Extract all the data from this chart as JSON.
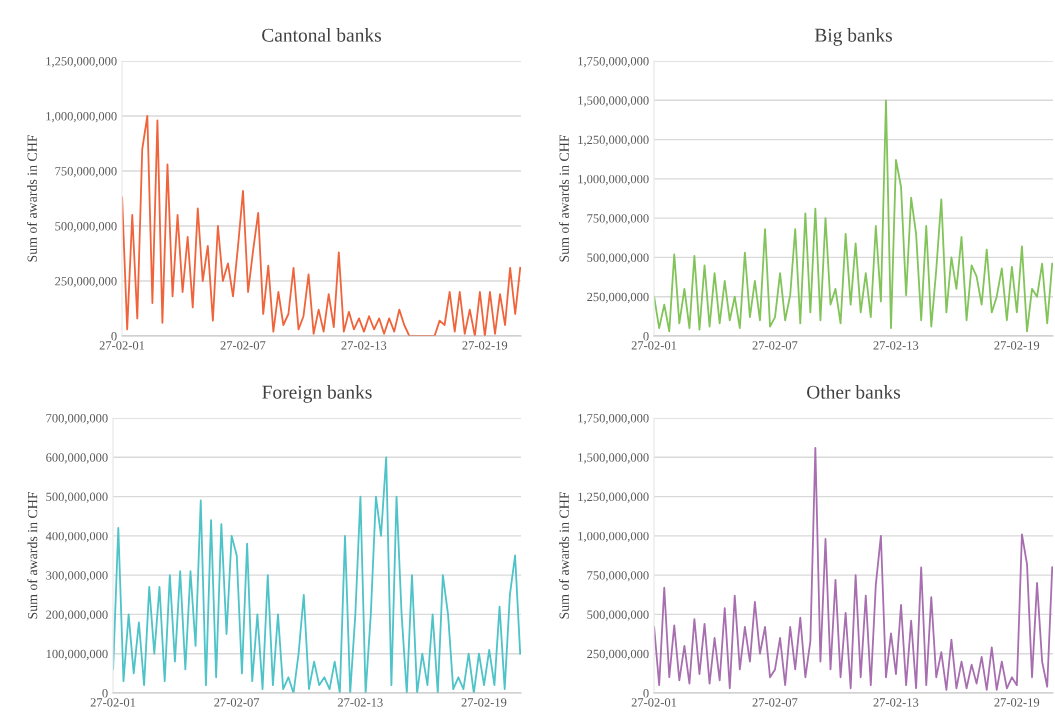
{
  "chart_data": [
    {
      "type": "line",
      "title": "Cantonal banks",
      "ylabel": "Sum of awards in CHF",
      "grid": "y",
      "marker": "none",
      "line_style": "solid",
      "xlim": [
        "2001-02-27",
        "2020-12-15"
      ],
      "xticks": [
        {
          "value": "2001-02-27",
          "label": "27-02-01"
        },
        {
          "value": "2007-02-27",
          "label": "27-02-07"
        },
        {
          "value": "2013-02-27",
          "label": "27-02-13"
        },
        {
          "value": "2019-02-27",
          "label": "27-02-19"
        }
      ],
      "ylim": [
        0,
        1250000000
      ],
      "yticks": [
        0,
        {
          "value": 250000000,
          "label": "250,000,000"
        },
        {
          "value": 500000000,
          "label": "500,000,000"
        },
        {
          "value": 750000000,
          "label": "750,000,000"
        },
        {
          "value": 1000000000,
          "label": "1,000,000,000"
        },
        {
          "value": 1250000000,
          "label": "1,250,000,000"
        }
      ],
      "x": [
        "2001-03",
        "2001-06",
        "2001-09",
        "2001-12",
        "2002-03",
        "2002-06",
        "2002-09",
        "2002-12",
        "2003-03",
        "2003-06",
        "2003-09",
        "2003-12",
        "2004-03",
        "2004-06",
        "2004-09",
        "2004-12",
        "2005-03",
        "2005-06",
        "2005-09",
        "2005-12",
        "2006-03",
        "2006-06",
        "2006-09",
        "2006-12",
        "2007-03",
        "2007-06",
        "2007-09",
        "2007-12",
        "2008-03",
        "2008-06",
        "2008-09",
        "2008-12",
        "2009-03",
        "2009-06",
        "2009-09",
        "2009-12",
        "2010-03",
        "2010-06",
        "2010-09",
        "2010-12",
        "2011-03",
        "2011-06",
        "2011-09",
        "2011-12",
        "2012-03",
        "2012-06",
        "2012-09",
        "2012-12",
        "2013-03",
        "2013-06",
        "2013-09",
        "2013-12",
        "2014-03",
        "2014-06",
        "2014-09",
        "2014-12",
        "2015-03",
        "2015-06",
        "2015-09",
        "2015-12",
        "2016-03",
        "2016-06",
        "2016-09",
        "2016-12",
        "2017-03",
        "2017-06",
        "2017-09",
        "2017-12",
        "2018-03",
        "2018-06",
        "2018-09",
        "2018-12",
        "2019-03",
        "2019-06",
        "2019-09",
        "2019-12",
        "2020-03",
        "2020-06",
        "2020-09",
        "2020-12"
      ],
      "series": [
        {
          "color": "#f0643c",
          "values": [
            630000000,
            30000000,
            550000000,
            80000000,
            850000000,
            1000000000,
            150000000,
            980000000,
            60000000,
            780000000,
            180000000,
            550000000,
            200000000,
            450000000,
            130000000,
            580000000,
            250000000,
            410000000,
            70000000,
            500000000,
            250000000,
            330000000,
            180000000,
            410000000,
            660000000,
            200000000,
            390000000,
            560000000,
            100000000,
            320000000,
            20000000,
            200000000,
            50000000,
            100000000,
            310000000,
            30000000,
            90000000,
            280000000,
            10000000,
            120000000,
            20000000,
            190000000,
            40000000,
            380000000,
            20000000,
            110000000,
            30000000,
            80000000,
            20000000,
            90000000,
            30000000,
            80000000,
            10000000,
            80000000,
            20000000,
            120000000,
            50000000,
            0,
            0,
            0,
            0,
            0,
            0,
            70000000,
            50000000,
            200000000,
            20000000,
            200000000,
            10000000,
            120000000,
            0,
            200000000,
            0,
            200000000,
            10000000,
            190000000,
            50000000,
            310000000,
            100000000,
            310000000
          ]
        }
      ]
    },
    {
      "type": "line",
      "title": "Big banks",
      "ylabel": "Sum of awards in CHF",
      "grid": "y",
      "marker": "none",
      "line_style": "solid",
      "xlim": [
        "2001-02-27",
        "2020-12-15"
      ],
      "xticks": [
        {
          "value": "2001-02-27",
          "label": "27-02-01"
        },
        {
          "value": "2007-02-27",
          "label": "27-02-07"
        },
        {
          "value": "2013-02-27",
          "label": "27-02-13"
        },
        {
          "value": "2019-02-27",
          "label": "27-02-19"
        }
      ],
      "ylim": [
        0,
        1750000000
      ],
      "yticks": [
        0,
        {
          "value": 250000000,
          "label": "250,000,000"
        },
        {
          "value": 500000000,
          "label": "500,000,000"
        },
        {
          "value": 750000000,
          "label": "750,000,000"
        },
        {
          "value": 1000000000,
          "label": "1,000,000,000"
        },
        {
          "value": 1250000000,
          "label": "1,250,000,000"
        },
        {
          "value": 1500000000,
          "label": "1,500,000,000"
        },
        {
          "value": 1750000000,
          "label": "1,750,000,000"
        }
      ],
      "x": [
        "2001-03",
        "2001-06",
        "2001-09",
        "2001-12",
        "2002-03",
        "2002-06",
        "2002-09",
        "2002-12",
        "2003-03",
        "2003-06",
        "2003-09",
        "2003-12",
        "2004-03",
        "2004-06",
        "2004-09",
        "2004-12",
        "2005-03",
        "2005-06",
        "2005-09",
        "2005-12",
        "2006-03",
        "2006-06",
        "2006-09",
        "2006-12",
        "2007-03",
        "2007-06",
        "2007-09",
        "2007-12",
        "2008-03",
        "2008-06",
        "2008-09",
        "2008-12",
        "2009-03",
        "2009-06",
        "2009-09",
        "2009-12",
        "2010-03",
        "2010-06",
        "2010-09",
        "2010-12",
        "2011-03",
        "2011-06",
        "2011-09",
        "2011-12",
        "2012-03",
        "2012-06",
        "2012-09",
        "2012-12",
        "2013-03",
        "2013-06",
        "2013-09",
        "2013-12",
        "2014-03",
        "2014-06",
        "2014-09",
        "2014-12",
        "2015-03",
        "2015-06",
        "2015-09",
        "2015-12",
        "2016-03",
        "2016-06",
        "2016-09",
        "2016-12",
        "2017-03",
        "2017-06",
        "2017-09",
        "2017-12",
        "2018-03",
        "2018-06",
        "2018-09",
        "2018-12",
        "2019-03",
        "2019-06",
        "2019-09",
        "2019-12",
        "2020-03",
        "2020-06",
        "2020-09",
        "2020-12"
      ],
      "series": [
        {
          "color": "#82c45a",
          "values": [
            250000000,
            50000000,
            200000000,
            30000000,
            520000000,
            80000000,
            300000000,
            50000000,
            510000000,
            40000000,
            450000000,
            60000000,
            400000000,
            80000000,
            350000000,
            100000000,
            250000000,
            50000000,
            530000000,
            120000000,
            350000000,
            100000000,
            680000000,
            60000000,
            120000000,
            400000000,
            100000000,
            260000000,
            680000000,
            80000000,
            780000000,
            150000000,
            810000000,
            100000000,
            750000000,
            200000000,
            300000000,
            80000000,
            650000000,
            200000000,
            590000000,
            150000000,
            400000000,
            120000000,
            700000000,
            220000000,
            1500000000,
            50000000,
            1120000000,
            950000000,
            260000000,
            880000000,
            650000000,
            100000000,
            700000000,
            60000000,
            420000000,
            870000000,
            150000000,
            500000000,
            300000000,
            630000000,
            100000000,
            450000000,
            380000000,
            200000000,
            550000000,
            150000000,
            250000000,
            430000000,
            100000000,
            440000000,
            150000000,
            570000000,
            30000000,
            300000000,
            250000000,
            460000000,
            80000000,
            460000000
          ]
        }
      ]
    },
    {
      "type": "line",
      "title": "Foreign banks",
      "ylabel": "Sum of awards in CHF",
      "grid": "y",
      "marker": "none",
      "line_style": "solid",
      "xlim": [
        "2001-02-27",
        "2020-12-15"
      ],
      "xticks": [
        {
          "value": "2001-02-27",
          "label": "27-02-01"
        },
        {
          "value": "2007-02-27",
          "label": "27-02-07"
        },
        {
          "value": "2013-02-27",
          "label": "27-02-13"
        },
        {
          "value": "2019-02-27",
          "label": "27-02-19"
        }
      ],
      "ylim": [
        0,
        700000000
      ],
      "yticks": [
        0,
        {
          "value": 100000000,
          "label": "100,000,000"
        },
        {
          "value": 200000000,
          "label": "200,000,000"
        },
        {
          "value": 300000000,
          "label": "300,000,000"
        },
        {
          "value": 400000000,
          "label": "400,000,000"
        },
        {
          "value": 500000000,
          "label": "500,000,000"
        },
        {
          "value": 600000000,
          "label": "600,000,000"
        },
        {
          "value": 700000000,
          "label": "700,000,000"
        }
      ],
      "x": [
        "2001-03",
        "2001-06",
        "2001-09",
        "2001-12",
        "2002-03",
        "2002-06",
        "2002-09",
        "2002-12",
        "2003-03",
        "2003-06",
        "2003-09",
        "2003-12",
        "2004-03",
        "2004-06",
        "2004-09",
        "2004-12",
        "2005-03",
        "2005-06",
        "2005-09",
        "2005-12",
        "2006-03",
        "2006-06",
        "2006-09",
        "2006-12",
        "2007-03",
        "2007-06",
        "2007-09",
        "2007-12",
        "2008-03",
        "2008-06",
        "2008-09",
        "2008-12",
        "2009-03",
        "2009-06",
        "2009-09",
        "2009-12",
        "2010-03",
        "2010-06",
        "2010-09",
        "2010-12",
        "2011-03",
        "2011-06",
        "2011-09",
        "2011-12",
        "2012-03",
        "2012-06",
        "2012-09",
        "2012-12",
        "2013-03",
        "2013-06",
        "2013-09",
        "2013-12",
        "2014-03",
        "2014-06",
        "2014-09",
        "2014-12",
        "2015-03",
        "2015-06",
        "2015-09",
        "2015-12",
        "2016-03",
        "2016-06",
        "2016-09",
        "2016-12",
        "2017-03",
        "2017-06",
        "2017-09",
        "2017-12",
        "2018-03",
        "2018-06",
        "2018-09",
        "2018-12",
        "2019-03",
        "2019-06",
        "2019-09",
        "2019-12",
        "2020-03",
        "2020-06",
        "2020-09",
        "2020-12"
      ],
      "series": [
        {
          "color": "#4ec3c8",
          "values": [
            60000000,
            420000000,
            30000000,
            200000000,
            50000000,
            180000000,
            20000000,
            270000000,
            100000000,
            270000000,
            30000000,
            300000000,
            80000000,
            310000000,
            60000000,
            310000000,
            120000000,
            490000000,
            20000000,
            440000000,
            40000000,
            430000000,
            150000000,
            400000000,
            350000000,
            50000000,
            380000000,
            30000000,
            200000000,
            10000000,
            300000000,
            20000000,
            200000000,
            10000000,
            40000000,
            0,
            100000000,
            250000000,
            10000000,
            80000000,
            20000000,
            40000000,
            10000000,
            80000000,
            0,
            400000000,
            0,
            200000000,
            500000000,
            0,
            200000000,
            500000000,
            400000000,
            600000000,
            20000000,
            500000000,
            200000000,
            0,
            300000000,
            0,
            100000000,
            20000000,
            200000000,
            0,
            300000000,
            200000000,
            10000000,
            40000000,
            10000000,
            100000000,
            0,
            100000000,
            20000000,
            110000000,
            20000000,
            220000000,
            10000000,
            250000000,
            350000000,
            100000000
          ]
        }
      ]
    },
    {
      "type": "line",
      "title": "Other banks",
      "ylabel": "Sum of awards in CHF",
      "grid": "y",
      "marker": "none",
      "line_style": "solid",
      "xlim": [
        "2001-02-27",
        "2020-12-15"
      ],
      "xticks": [
        {
          "value": "2001-02-27",
          "label": "27-02-01"
        },
        {
          "value": "2007-02-27",
          "label": "27-02-07"
        },
        {
          "value": "2013-02-27",
          "label": "27-02-13"
        },
        {
          "value": "2019-02-27",
          "label": "27-02-19"
        }
      ],
      "ylim": [
        0,
        1750000000
      ],
      "yticks": [
        0,
        {
          "value": 250000000,
          "label": "250,000,000"
        },
        {
          "value": 500000000,
          "label": "500,000,000"
        },
        {
          "value": 750000000,
          "label": "750,000,000"
        },
        {
          "value": 1000000000,
          "label": "1,000,000,000"
        },
        {
          "value": 1250000000,
          "label": "1,250,000,000"
        },
        {
          "value": 1500000000,
          "label": "1,500,000,000"
        },
        {
          "value": 1750000000,
          "label": "1,750,000,000"
        }
      ],
      "x": [
        "2001-03",
        "2001-06",
        "2001-09",
        "2001-12",
        "2002-03",
        "2002-06",
        "2002-09",
        "2002-12",
        "2003-03",
        "2003-06",
        "2003-09",
        "2003-12",
        "2004-03",
        "2004-06",
        "2004-09",
        "2004-12",
        "2005-03",
        "2005-06",
        "2005-09",
        "2005-12",
        "2006-03",
        "2006-06",
        "2006-09",
        "2006-12",
        "2007-03",
        "2007-06",
        "2007-09",
        "2007-12",
        "2008-03",
        "2008-06",
        "2008-09",
        "2008-12",
        "2009-03",
        "2009-06",
        "2009-09",
        "2009-12",
        "2010-03",
        "2010-06",
        "2010-09",
        "2010-12",
        "2011-03",
        "2011-06",
        "2011-09",
        "2011-12",
        "2012-03",
        "2012-06",
        "2012-09",
        "2012-12",
        "2013-03",
        "2013-06",
        "2013-09",
        "2013-12",
        "2014-03",
        "2014-06",
        "2014-09",
        "2014-12",
        "2015-03",
        "2015-06",
        "2015-09",
        "2015-12",
        "2016-03",
        "2016-06",
        "2016-09",
        "2016-12",
        "2017-03",
        "2017-06",
        "2017-09",
        "2017-12",
        "2018-03",
        "2018-06",
        "2018-09",
        "2018-12",
        "2019-03",
        "2019-06",
        "2019-09",
        "2019-12",
        "2020-03",
        "2020-06",
        "2020-09",
        "2020-12"
      ],
      "series": [
        {
          "color": "#a86fb0",
          "values": [
            420000000,
            50000000,
            670000000,
            100000000,
            430000000,
            80000000,
            300000000,
            60000000,
            470000000,
            120000000,
            440000000,
            60000000,
            350000000,
            80000000,
            540000000,
            30000000,
            620000000,
            150000000,
            420000000,
            200000000,
            580000000,
            250000000,
            420000000,
            100000000,
            150000000,
            350000000,
            50000000,
            420000000,
            150000000,
            480000000,
            100000000,
            330000000,
            1560000000,
            200000000,
            980000000,
            150000000,
            720000000,
            100000000,
            510000000,
            30000000,
            750000000,
            100000000,
            620000000,
            50000000,
            690000000,
            1000000000,
            100000000,
            380000000,
            120000000,
            560000000,
            50000000,
            460000000,
            30000000,
            800000000,
            50000000,
            610000000,
            100000000,
            260000000,
            20000000,
            340000000,
            30000000,
            200000000,
            30000000,
            180000000,
            60000000,
            230000000,
            20000000,
            290000000,
            20000000,
            200000000,
            30000000,
            100000000,
            50000000,
            1010000000,
            820000000,
            100000000,
            700000000,
            200000000,
            40000000,
            800000000
          ]
        }
      ]
    }
  ]
}
